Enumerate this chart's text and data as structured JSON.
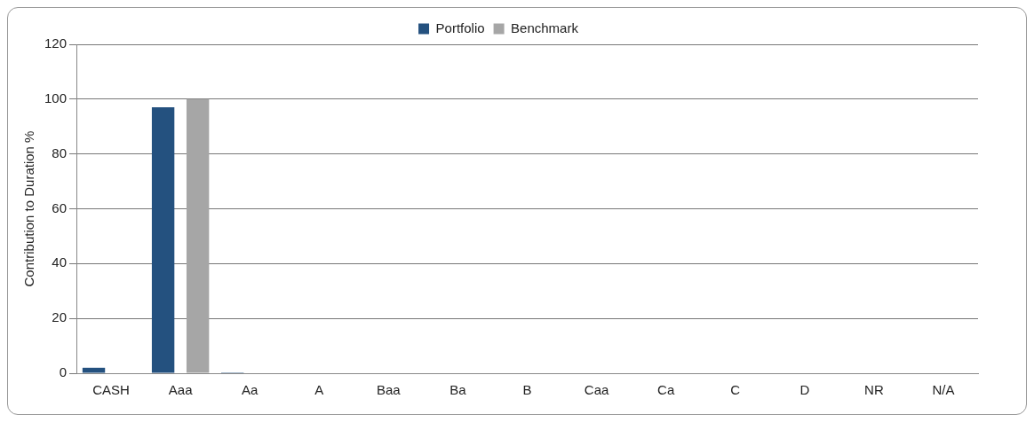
{
  "chart_data": {
    "type": "bar",
    "ylabel": "Contribution to Duration %",
    "categories": [
      "CASH",
      "Aaa",
      "Aa",
      "A",
      "Baa",
      "Ba",
      "B",
      "Caa",
      "Ca",
      "C",
      "D",
      "NR",
      "N/A"
    ],
    "series": [
      {
        "name": "Portfolio",
        "color": "#24517f",
        "values": [
          2,
          97,
          0.3,
          0,
          0,
          0,
          0,
          0,
          0,
          0,
          0,
          0,
          0
        ]
      },
      {
        "name": "Benchmark",
        "color": "#a6a6a6",
        "values": [
          0,
          100,
          0,
          0,
          0,
          0,
          0,
          0,
          0,
          0,
          0,
          0,
          0
        ]
      }
    ],
    "ylim": [
      0,
      120
    ],
    "yticks": [
      0,
      20,
      40,
      60,
      80,
      100,
      120
    ],
    "grid": "y",
    "legend": "top"
  }
}
